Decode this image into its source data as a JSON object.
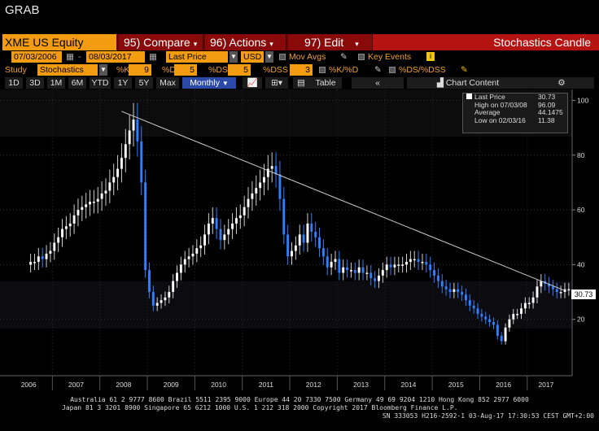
{
  "window_title": "GRAB",
  "header": {
    "ticker": "XME US Equity",
    "compare": "95) Compare",
    "actions": "96) Actions",
    "edit": "97) Edit",
    "chart_name": "Stochastics Candle"
  },
  "controls": {
    "start_date": "07/03/2006",
    "end_date": "08/03/2017",
    "price_field": "Last Price",
    "currency": "USD",
    "mov_avgs": "Mov Avgs",
    "key_events": "Key Events",
    "study_label": "Study",
    "study_value": "Stochastics",
    "k_label": "%K",
    "k_value": "9",
    "d_label": "%D",
    "d_value": "5",
    "ds_label": "%DS",
    "ds_value": "5",
    "dss_label": "%DSS",
    "dss_value": "3",
    "kd_label": "%K/%D",
    "dsdss_label": "%DS/%DSS"
  },
  "periods": [
    "1D",
    "3D",
    "1M",
    "6M",
    "YTD",
    "1Y",
    "5Y",
    "Max"
  ],
  "frequency": "Monthly",
  "table_label": "Table",
  "chart_content_label": "Chart Content",
  "legend": {
    "last_price_label": "Last Price",
    "last_price_value": "30.73",
    "high_label": "High on 07/03/08",
    "high_value": "96.09",
    "average_label": "Average",
    "average_value": "44.1475",
    "low_label": "Low on 02/03/16",
    "low_value": "11.38"
  },
  "last_value_tag": "30.73",
  "footer": {
    "line1": "Australia 61 2 9777 8600 Brazil 5511 2395 9000 Europe 44 20 7330 7500 Germany 49 69 9204 1210 Hong Kong 852 2977 6000",
    "line2": "Japan 81 3 3201 8900        Singapore 65 6212 1000        U.S. 1 212 318 2000        Copyright 2017 Bloomberg Finance L.P.",
    "line3": "SN 333053 H216-2592-1 03-Aug-17 17:30:53 CEST GMT+2:00"
  },
  "colors": {
    "header_bg": "#6b0000",
    "ticker_bg": "#f39c12",
    "candle_up": "#ffffff",
    "candle_down": "#2f7fff",
    "trendline": "#cccccc"
  },
  "chart_data": {
    "type": "candlestick",
    "x_labels": [
      "2006",
      "2007",
      "2008",
      "2009",
      "2010",
      "2011",
      "2012",
      "2013",
      "2014",
      "2015",
      "2016",
      "2017"
    ],
    "y_ticks": [
      20,
      40,
      60,
      80,
      100
    ],
    "ylim": [
      0,
      104
    ],
    "monthly_close": [
      41,
      41,
      43,
      42,
      44,
      45,
      48,
      50,
      53,
      54,
      55,
      58,
      60,
      61,
      62,
      63,
      63,
      64,
      66,
      67,
      70,
      72,
      75,
      79,
      84,
      89,
      93,
      85,
      70,
      38,
      30,
      25,
      26,
      27,
      28,
      30,
      34,
      37,
      40,
      42,
      43,
      44,
      46,
      47,
      51,
      55,
      57,
      53,
      49,
      51,
      53,
      55,
      57,
      58,
      61,
      64,
      66,
      68,
      70,
      72,
      75,
      76,
      73,
      64,
      51,
      43,
      45,
      47,
      51,
      48,
      55,
      52,
      50,
      46,
      43,
      39,
      41,
      42,
      37,
      39,
      38,
      38,
      37,
      39,
      37,
      37,
      35,
      34,
      36,
      38,
      40,
      39,
      40,
      40,
      40,
      41,
      42,
      42,
      41,
      41,
      40,
      38,
      36,
      34,
      32,
      31,
      30,
      31,
      30,
      29,
      27,
      25,
      24,
      22,
      21,
      20,
      19,
      18,
      14,
      12,
      17,
      20,
      22,
      22,
      24,
      26,
      26,
      28,
      32,
      34,
      33,
      32,
      31,
      30,
      30,
      31,
      31
    ],
    "trendline": {
      "from": {
        "date": "2008-06",
        "value": 96
      },
      "to": {
        "date": "2017-08",
        "value": 31
      }
    }
  }
}
